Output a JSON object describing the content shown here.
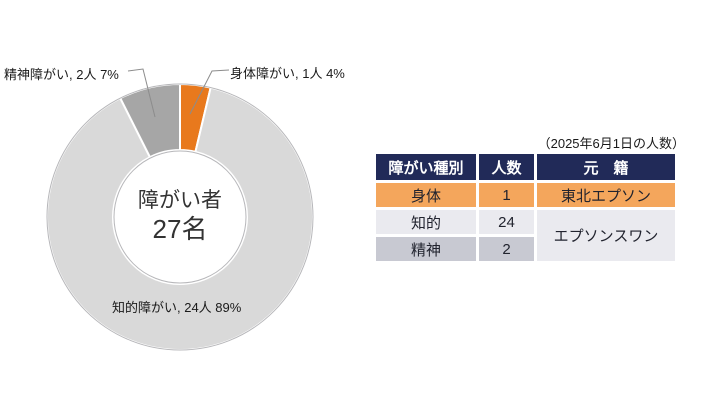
{
  "page": {
    "background": "#ffffff"
  },
  "chart": {
    "center_label_line1": "障がい者",
    "center_label_line2": "27名",
    "labels": {
      "seishin": "精神障がい, 2人 7%",
      "shintai": "身体障がい, 1人 4%",
      "chiteki": "知的障がい, 24人 89%"
    }
  },
  "chart_data": {
    "type": "pie",
    "subtype": "donut",
    "title": "障がい者 27名",
    "total": 27,
    "unit": "人",
    "categories": [
      "身体障がい",
      "知的障がい",
      "精神障がい"
    ],
    "values": [
      1,
      24,
      2
    ],
    "percent_labels": [
      "4%",
      "89%",
      "7%"
    ],
    "slice_labels": [
      "身体障がい, 1人 4%",
      "知的障がい, 24人 89%",
      "精神障がい, 2人 7%"
    ],
    "colors": [
      "#e8791d",
      "#d9d9d9",
      "#a6a6a6"
    ],
    "start_angle": 0,
    "direction": "clockwise",
    "inner_radius_ratio": 0.5,
    "legend": "none",
    "center_text": [
      "障がい者",
      "27名"
    ]
  },
  "table": {
    "caption": "（2025年6月1日の人数）",
    "headers": [
      "障がい種別",
      "人数",
      "元　籍"
    ],
    "rows": [
      {
        "type": "身体",
        "count": "1",
        "origin": "東北エプソン"
      },
      {
        "type": "知的",
        "count": "24",
        "origin": "エプソンスワン"
      },
      {
        "type": "精神",
        "count": "2"
      }
    ],
    "colors": {
      "header_bg": "#212a58",
      "header_text": "#ffffff",
      "row1_bg": "#f4a65c",
      "row2_bg": "#eaeaef",
      "row3_bg": "#c8c9d2",
      "merged_bg": "#eaeaef"
    }
  }
}
